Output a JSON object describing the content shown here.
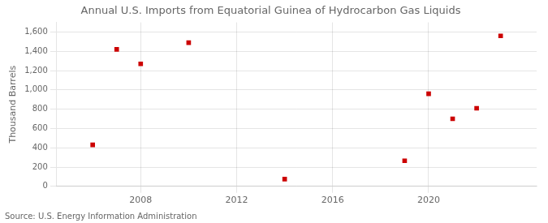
{
  "chart_data": {
    "type": "scatter",
    "title": "Annual U.S. Imports from Equatorial Guinea of Hydrocarbon Gas Liquids",
    "ylabel": "Thousand Barrels",
    "annotations": [
      "Source: U.S. Energy Information Administration"
    ],
    "x": [
      2006,
      2007,
      2008,
      2010,
      2014,
      2019,
      2020,
      2021,
      2022,
      2023
    ],
    "values": [
      430,
      1420,
      1270,
      1490,
      75,
      265,
      960,
      700,
      810,
      1560
    ],
    "color": "#cc0000",
    "marker": "square",
    "xlim": [
      2004.5,
      2024.5
    ],
    "xticks": [
      2008,
      2012,
      2016,
      2020
    ],
    "ylim": [
      0,
      1700
    ],
    "yticks": [
      0,
      200,
      400,
      600,
      800,
      {
        "value": 1000,
        "label": "1,000"
      },
      {
        "value": 1200,
        "label": "1,200"
      },
      {
        "value": 1400,
        "label": "1,400"
      },
      {
        "value": 1600,
        "label": "1,600"
      }
    ],
    "grid": true
  }
}
